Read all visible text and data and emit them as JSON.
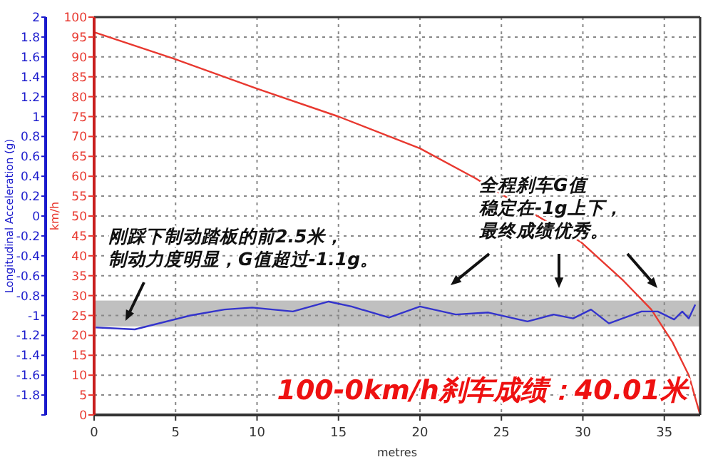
{
  "chart_data": {
    "type": "line",
    "xlabel": "metres",
    "ylabel": "km/h",
    "y2label": "Longitudinal Acceleration (g)",
    "xlim": [
      0,
      37.2
    ],
    "xticks": [
      0,
      5,
      10,
      15,
      20,
      25,
      30,
      35
    ],
    "ylim": [
      0,
      100
    ],
    "yticks": [
      0,
      5,
      10,
      15,
      20,
      25,
      30,
      35,
      40,
      45,
      50,
      55,
      60,
      65,
      70,
      75,
      80,
      85,
      90,
      95,
      100
    ],
    "y2lim": [
      -2,
      2
    ],
    "y2ticks": [
      {
        "value": -2,
        "label": null
      },
      -1.8,
      -1.6,
      -1.4,
      -1.2,
      -1,
      -0.8,
      -0.6,
      -0.4,
      -0.2,
      0,
      0.2,
      0.4,
      0.6,
      0.8,
      1,
      1.2,
      1.4,
      1.6,
      1.8,
      2
    ],
    "grid": true,
    "bands": [
      {
        "axis": "y2",
        "from": -1.11,
        "to": -0.85,
        "color": "#c0c0c0"
      }
    ],
    "series": [
      {
        "color": "#e8382f",
        "x": [
          0,
          5,
          10,
          15,
          20,
          23.4,
          26,
          29.9,
          32.5,
          34.2,
          35.5,
          36.5,
          37.2
        ],
        "values": [
          96.2,
          89.4,
          82,
          75,
          67,
          59.5,
          53,
          43.4,
          33.7,
          26.5,
          18.3,
          10,
          0
        ]
      },
      {
        "color": "#3333cc",
        "axis": "y2",
        "x": [
          0.1,
          2.5,
          5.9,
          8,
          9.7,
          12.2,
          14.4,
          15.8,
          18.1,
          20,
          22.2,
          24.2,
          26.6,
          28.2,
          29.4,
          30.5,
          31.6,
          33.6,
          34.6,
          35.6,
          36.1,
          36.5,
          36.9
        ],
        "values": [
          -1.12,
          -1.14,
          -1,
          -0.94,
          -0.92,
          -0.96,
          -0.86,
          -0.91,
          -1.02,
          -0.91,
          -0.99,
          -0.97,
          -1.06,
          -0.99,
          -1.03,
          -0.94,
          -1.08,
          -0.96,
          -0.96,
          -1.04,
          -0.96,
          -1.03,
          -0.89
        ]
      }
    ],
    "annotations": [
      "刚踩下制动踏板的前2.5米，",
      "制动力度明显，G值超过-1.1g。",
      "全程刹车G值",
      "稳定在-1g上下，",
      "最终成绩优秀。",
      "100-0km/h刹车成绩：40.01米"
    ]
  }
}
